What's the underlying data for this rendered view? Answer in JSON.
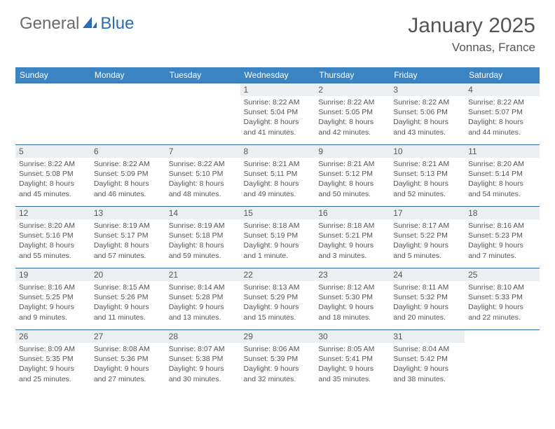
{
  "logo": {
    "part1": "General",
    "part2": "Blue"
  },
  "title": "January 2025",
  "location": "Vonnas, France",
  "colors": {
    "header_bg": "#3b84c4",
    "header_text": "#ffffff",
    "daynum_bg": "#eceff1",
    "rule": "#2f6da8",
    "body_text": "#555555",
    "logo_gray": "#6b6b6b",
    "logo_blue": "#2a6db0"
  },
  "weekdays": [
    "Sunday",
    "Monday",
    "Tuesday",
    "Wednesday",
    "Thursday",
    "Friday",
    "Saturday"
  ],
  "weeks": [
    [
      null,
      null,
      null,
      {
        "n": "1",
        "sr": "Sunrise: 8:22 AM",
        "ss": "Sunset: 5:04 PM",
        "d1": "Daylight: 8 hours",
        "d2": "and 41 minutes."
      },
      {
        "n": "2",
        "sr": "Sunrise: 8:22 AM",
        "ss": "Sunset: 5:05 PM",
        "d1": "Daylight: 8 hours",
        "d2": "and 42 minutes."
      },
      {
        "n": "3",
        "sr": "Sunrise: 8:22 AM",
        "ss": "Sunset: 5:06 PM",
        "d1": "Daylight: 8 hours",
        "d2": "and 43 minutes."
      },
      {
        "n": "4",
        "sr": "Sunrise: 8:22 AM",
        "ss": "Sunset: 5:07 PM",
        "d1": "Daylight: 8 hours",
        "d2": "and 44 minutes."
      }
    ],
    [
      {
        "n": "5",
        "sr": "Sunrise: 8:22 AM",
        "ss": "Sunset: 5:08 PM",
        "d1": "Daylight: 8 hours",
        "d2": "and 45 minutes."
      },
      {
        "n": "6",
        "sr": "Sunrise: 8:22 AM",
        "ss": "Sunset: 5:09 PM",
        "d1": "Daylight: 8 hours",
        "d2": "and 46 minutes."
      },
      {
        "n": "7",
        "sr": "Sunrise: 8:22 AM",
        "ss": "Sunset: 5:10 PM",
        "d1": "Daylight: 8 hours",
        "d2": "and 48 minutes."
      },
      {
        "n": "8",
        "sr": "Sunrise: 8:21 AM",
        "ss": "Sunset: 5:11 PM",
        "d1": "Daylight: 8 hours",
        "d2": "and 49 minutes."
      },
      {
        "n": "9",
        "sr": "Sunrise: 8:21 AM",
        "ss": "Sunset: 5:12 PM",
        "d1": "Daylight: 8 hours",
        "d2": "and 50 minutes."
      },
      {
        "n": "10",
        "sr": "Sunrise: 8:21 AM",
        "ss": "Sunset: 5:13 PM",
        "d1": "Daylight: 8 hours",
        "d2": "and 52 minutes."
      },
      {
        "n": "11",
        "sr": "Sunrise: 8:20 AM",
        "ss": "Sunset: 5:14 PM",
        "d1": "Daylight: 8 hours",
        "d2": "and 54 minutes."
      }
    ],
    [
      {
        "n": "12",
        "sr": "Sunrise: 8:20 AM",
        "ss": "Sunset: 5:16 PM",
        "d1": "Daylight: 8 hours",
        "d2": "and 55 minutes."
      },
      {
        "n": "13",
        "sr": "Sunrise: 8:19 AM",
        "ss": "Sunset: 5:17 PM",
        "d1": "Daylight: 8 hours",
        "d2": "and 57 minutes."
      },
      {
        "n": "14",
        "sr": "Sunrise: 8:19 AM",
        "ss": "Sunset: 5:18 PM",
        "d1": "Daylight: 8 hours",
        "d2": "and 59 minutes."
      },
      {
        "n": "15",
        "sr": "Sunrise: 8:18 AM",
        "ss": "Sunset: 5:19 PM",
        "d1": "Daylight: 9 hours",
        "d2": "and 1 minute."
      },
      {
        "n": "16",
        "sr": "Sunrise: 8:18 AM",
        "ss": "Sunset: 5:21 PM",
        "d1": "Daylight: 9 hours",
        "d2": "and 3 minutes."
      },
      {
        "n": "17",
        "sr": "Sunrise: 8:17 AM",
        "ss": "Sunset: 5:22 PM",
        "d1": "Daylight: 9 hours",
        "d2": "and 5 minutes."
      },
      {
        "n": "18",
        "sr": "Sunrise: 8:16 AM",
        "ss": "Sunset: 5:23 PM",
        "d1": "Daylight: 9 hours",
        "d2": "and 7 minutes."
      }
    ],
    [
      {
        "n": "19",
        "sr": "Sunrise: 8:16 AM",
        "ss": "Sunset: 5:25 PM",
        "d1": "Daylight: 9 hours",
        "d2": "and 9 minutes."
      },
      {
        "n": "20",
        "sr": "Sunrise: 8:15 AM",
        "ss": "Sunset: 5:26 PM",
        "d1": "Daylight: 9 hours",
        "d2": "and 11 minutes."
      },
      {
        "n": "21",
        "sr": "Sunrise: 8:14 AM",
        "ss": "Sunset: 5:28 PM",
        "d1": "Daylight: 9 hours",
        "d2": "and 13 minutes."
      },
      {
        "n": "22",
        "sr": "Sunrise: 8:13 AM",
        "ss": "Sunset: 5:29 PM",
        "d1": "Daylight: 9 hours",
        "d2": "and 15 minutes."
      },
      {
        "n": "23",
        "sr": "Sunrise: 8:12 AM",
        "ss": "Sunset: 5:30 PM",
        "d1": "Daylight: 9 hours",
        "d2": "and 18 minutes."
      },
      {
        "n": "24",
        "sr": "Sunrise: 8:11 AM",
        "ss": "Sunset: 5:32 PM",
        "d1": "Daylight: 9 hours",
        "d2": "and 20 minutes."
      },
      {
        "n": "25",
        "sr": "Sunrise: 8:10 AM",
        "ss": "Sunset: 5:33 PM",
        "d1": "Daylight: 9 hours",
        "d2": "and 22 minutes."
      }
    ],
    [
      {
        "n": "26",
        "sr": "Sunrise: 8:09 AM",
        "ss": "Sunset: 5:35 PM",
        "d1": "Daylight: 9 hours",
        "d2": "and 25 minutes."
      },
      {
        "n": "27",
        "sr": "Sunrise: 8:08 AM",
        "ss": "Sunset: 5:36 PM",
        "d1": "Daylight: 9 hours",
        "d2": "and 27 minutes."
      },
      {
        "n": "28",
        "sr": "Sunrise: 8:07 AM",
        "ss": "Sunset: 5:38 PM",
        "d1": "Daylight: 9 hours",
        "d2": "and 30 minutes."
      },
      {
        "n": "29",
        "sr": "Sunrise: 8:06 AM",
        "ss": "Sunset: 5:39 PM",
        "d1": "Daylight: 9 hours",
        "d2": "and 32 minutes."
      },
      {
        "n": "30",
        "sr": "Sunrise: 8:05 AM",
        "ss": "Sunset: 5:41 PM",
        "d1": "Daylight: 9 hours",
        "d2": "and 35 minutes."
      },
      {
        "n": "31",
        "sr": "Sunrise: 8:04 AM",
        "ss": "Sunset: 5:42 PM",
        "d1": "Daylight: 9 hours",
        "d2": "and 38 minutes."
      },
      null
    ]
  ]
}
